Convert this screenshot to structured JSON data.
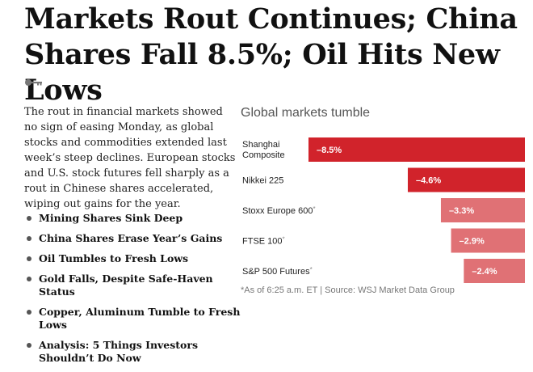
{
  "article": {
    "headline": "Markets Rout Continues; China Shares Fall 8.5%; Oil Hits New Lows",
    "summary": "The rout in financial markets showed no sign of easing Monday, as global stocks and commodities extended last week’s steep declines. European stocks and U.S. stock futures fell sharply as a rout in Chinese shares accelerated, wiping out gains for the year.",
    "related_links": [
      "Mining Shares Sink Deep",
      "China Shares Erase Year’s Gains",
      "Oil Tumbles to Fresh Lows",
      "Gold Falls, Despite Safe-Haven Status",
      "Copper, Aluminum Tumble to Fresh Lows",
      "Analysis: 5 Things Investors Shouldn’t Do Now"
    ],
    "icons": {
      "key": "key-icon",
      "bullet": "bullet-dot"
    }
  },
  "chart_data": {
    "type": "bar",
    "orientation": "horizontal",
    "title": "Global markets tumble",
    "categories": [
      "Shanghai Composite",
      "Nikkei 225",
      "Stoxx Europe 600",
      "FTSE 100",
      "S&P 500 Futures"
    ],
    "category_lines": [
      [
        "Shanghai",
        "Composite"
      ],
      [
        "Nikkei 225"
      ],
      [
        "Stoxx Europe 600"
      ],
      [
        "FTSE 100"
      ],
      [
        "S&P 500 Futures"
      ]
    ],
    "marks": [
      "",
      "",
      "*",
      "*",
      "*"
    ],
    "values": [
      -8.5,
      -4.6,
      -3.3,
      -2.9,
      -2.4
    ],
    "value_labels": [
      "–8.5%",
      "–4.6%",
      "–3.3%",
      "–2.9%",
      "–2.4%"
    ],
    "xlim": [
      -8.5,
      0
    ],
    "colors": [
      "#d1232b",
      "#d1232b",
      "#e07175",
      "#e07175",
      "#e07175"
    ],
    "source": "*As of 6:25 a.m. ET | Source: WSJ Market Data Group",
    "xlabel": "",
    "ylabel": ""
  }
}
